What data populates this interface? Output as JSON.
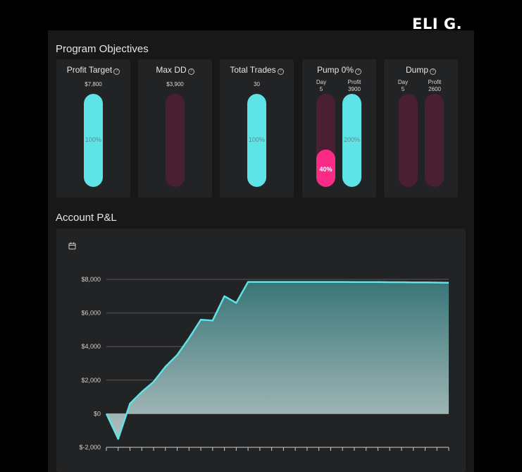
{
  "brand": "ELI G.",
  "sections": {
    "objectives_title": "Program Objectives",
    "pnl_title": "Account P&L"
  },
  "objectives": [
    {
      "title": "Profit Target",
      "value": "$7,800",
      "bars": [
        {
          "fill": 1.0,
          "label": "100%",
          "color": "cyan"
        }
      ]
    },
    {
      "title": "Max DD",
      "value": "$3,900",
      "bars": [
        {
          "fill": 0.0,
          "label": "",
          "color": "cyan"
        }
      ]
    },
    {
      "title": "Total Trades",
      "value": "30",
      "bars": [
        {
          "fill": 1.0,
          "label": "100%",
          "color": "cyan"
        }
      ]
    },
    {
      "title": "Pump 0%",
      "value": "",
      "sub": [
        {
          "l1": "Day",
          "l2": "5"
        },
        {
          "l1": "Profit",
          "l2": "3900"
        }
      ],
      "bars": [
        {
          "fill": 0.4,
          "label": "40%",
          "color": "pink"
        },
        {
          "fill": 1.0,
          "label": "200%",
          "color": "cyan"
        }
      ]
    },
    {
      "title": "Dump",
      "value": "",
      "sub": [
        {
          "l1": "Day",
          "l2": "5"
        },
        {
          "l1": "Profit",
          "l2": "2600"
        }
      ],
      "bars": [
        {
          "fill": 0.0,
          "label": "",
          "color": "cyan"
        },
        {
          "fill": 0.0,
          "label": "",
          "color": "cyan"
        }
      ]
    }
  ],
  "colors": {
    "cyan": "#5ee3e7",
    "pink": "#fa2b87",
    "track": "#4a1f32",
    "line": "#5ee3e7"
  },
  "chart_data": {
    "type": "area",
    "title": "",
    "xlabel": "",
    "ylabel": "",
    "ylim": [
      -2000,
      8000
    ],
    "yticks": [
      -2000,
      0,
      2000,
      4000,
      6000,
      8000
    ],
    "ytick_labels": [
      "$-2,000",
      "$0",
      "$2,000",
      "$4,000",
      "$6,000",
      "$8,000"
    ],
    "grid": true,
    "x": [
      0,
      1,
      2,
      3,
      4,
      5,
      6,
      7,
      8,
      9,
      10,
      11,
      12,
      13,
      14,
      15,
      16,
      17,
      18,
      19,
      20,
      21,
      22,
      23,
      24,
      25,
      26,
      27,
      28,
      29
    ],
    "series": [
      {
        "name": "",
        "values": [
          0,
          -1500,
          600,
          1300,
          1900,
          2800,
          3500,
          4500,
          5600,
          5550,
          7000,
          6600,
          7850,
          7850,
          7850,
          7850,
          7850,
          7850,
          7850,
          7850,
          7850,
          7840,
          7840,
          7840,
          7830,
          7830,
          7820,
          7820,
          7810,
          7800
        ]
      }
    ]
  }
}
